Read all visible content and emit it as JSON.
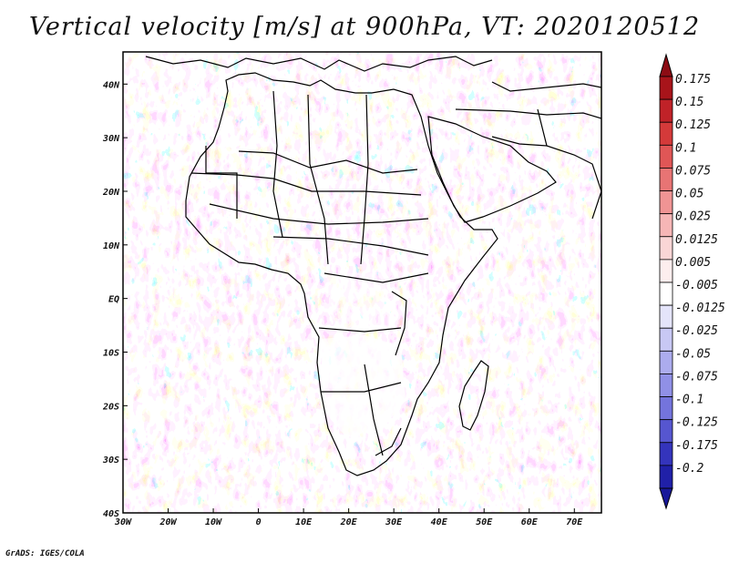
{
  "title": "Vertical velocity [m/s] at 900hPa, VT: 2020120512",
  "footer": "GrADS: IGES/COLA",
  "map": {
    "lon_range": [
      -30,
      76
    ],
    "lat_range": [
      -40,
      46
    ],
    "lon_ticks": [
      {
        "value": -30,
        "label": "30W"
      },
      {
        "value": -20,
        "label": "20W"
      },
      {
        "value": -10,
        "label": "10W"
      },
      {
        "value": 0,
        "label": "0"
      },
      {
        "value": 10,
        "label": "10E"
      },
      {
        "value": 20,
        "label": "20E"
      },
      {
        "value": 30,
        "label": "30E"
      },
      {
        "value": 40,
        "label": "40E"
      },
      {
        "value": 50,
        "label": "50E"
      },
      {
        "value": 60,
        "label": "60E"
      },
      {
        "value": 70,
        "label": "70E"
      }
    ],
    "lat_ticks": [
      {
        "value": 40,
        "label": "40N"
      },
      {
        "value": 30,
        "label": "30N"
      },
      {
        "value": 20,
        "label": "20N"
      },
      {
        "value": 10,
        "label": "10N"
      },
      {
        "value": 0,
        "label": "EQ"
      },
      {
        "value": -10,
        "label": "10S"
      },
      {
        "value": -20,
        "label": "20S"
      },
      {
        "value": -30,
        "label": "30S"
      },
      {
        "value": -40,
        "label": "40S"
      }
    ]
  },
  "colorbar": {
    "levels": [
      {
        "label": "0.175",
        "color": "#a8141a"
      },
      {
        "label": "0.15",
        "color": "#c02228"
      },
      {
        "label": "0.125",
        "color": "#d43a3a"
      },
      {
        "label": "0.1",
        "color": "#e05656"
      },
      {
        "label": "0.075",
        "color": "#e87474"
      },
      {
        "label": "0.05",
        "color": "#f09494"
      },
      {
        "label": "0.025",
        "color": "#f6b6b6"
      },
      {
        "label": "0.0125",
        "color": "#fad6d6"
      },
      {
        "label": "0.005",
        "color": "#fdeeee"
      },
      {
        "label": "-0.005",
        "color": "#ffffff"
      },
      {
        "label": "-0.0125",
        "color": "#e4e4fa"
      },
      {
        "label": "-0.025",
        "color": "#c8c8f4"
      },
      {
        "label": "-0.05",
        "color": "#acacee"
      },
      {
        "label": "-0.075",
        "color": "#9090e6"
      },
      {
        "label": "-0.1",
        "color": "#7474dc"
      },
      {
        "label": "-0.125",
        "color": "#5656d0"
      },
      {
        "label": "-0.175",
        "color": "#3434bc"
      },
      {
        "label": "-0.2",
        "color": "#2020a8"
      }
    ],
    "top_cap_color": "#8c0c14",
    "bottom_cap_color": "#18189a"
  }
}
